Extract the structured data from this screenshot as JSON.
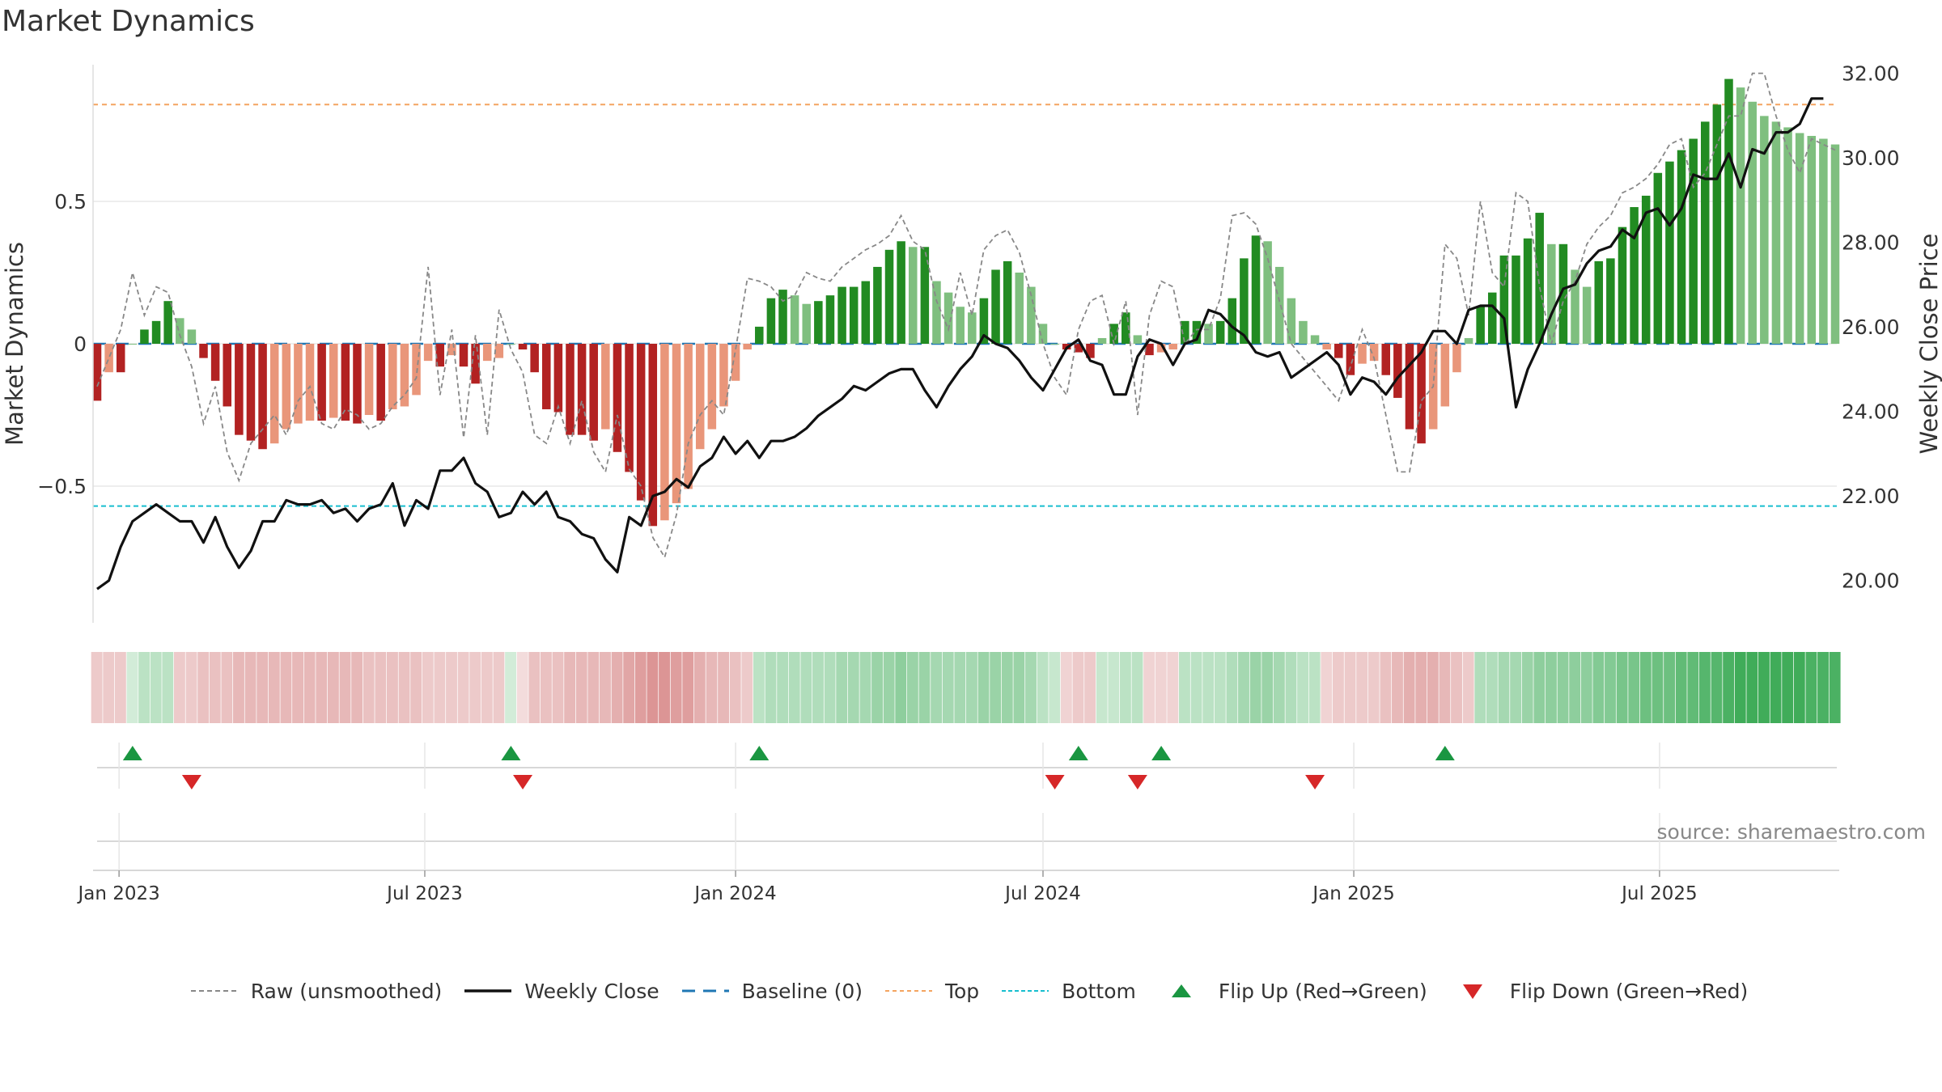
{
  "title": "Market Dynamics",
  "source": "source: sharemaestro.com",
  "colors": {
    "green_dark": "#228b22",
    "green_light": "#7fbf7f",
    "red_dark": "#b22222",
    "red_light": "#e9967a",
    "close_line": "#111111",
    "raw_line": "#888888",
    "baseline": "#1f77b4",
    "top": "#f4a460",
    "bottom": "#17becf",
    "flip_up": "#1a9641",
    "flip_down": "#d62728"
  },
  "chart_data": {
    "type": "bar",
    "title": "Market Dynamics",
    "ylabel": "Market Dynamics",
    "y2label": "Weekly Close Price",
    "ylim": [
      -0.98,
      0.98
    ],
    "y2lim": [
      19.0,
      32.2
    ],
    "yticks": [
      "0.5",
      "0",
      "−0.5"
    ],
    "yticks_values": [
      0.5,
      0,
      -0.5
    ],
    "y2ticks": [
      "32.00",
      "30.00",
      "28.00",
      "26.00",
      "24.00",
      "22.00",
      "20.00"
    ],
    "y2ticks_values": [
      32,
      30,
      28,
      26,
      24,
      22,
      20
    ],
    "xticks": [
      "Jan 2023",
      "Jul 2023",
      "Jan 2024",
      "Jul 2024",
      "Jan 2025",
      "Jul 2025"
    ],
    "xticks_values": [
      "2023-01-01",
      "2023-07-01",
      "2024-01-01",
      "2024-07-01",
      "2025-01-01",
      "2025-07-01"
    ],
    "first_week": "2022-12-19",
    "week_step_days": 7,
    "top_level": 0.84,
    "bottom_level": -0.57,
    "baseline": 0,
    "grid": true,
    "legend_position": "bottom",
    "bars": [
      -0.2,
      -0.1,
      -0.1,
      0.0,
      0.05,
      0.08,
      0.15,
      0.09,
      0.05,
      -0.05,
      -0.13,
      -0.22,
      -0.32,
      -0.34,
      -0.37,
      -0.35,
      -0.3,
      -0.28,
      -0.27,
      -0.27,
      -0.26,
      -0.27,
      -0.28,
      -0.25,
      -0.27,
      -0.23,
      -0.22,
      -0.18,
      -0.06,
      -0.08,
      -0.04,
      -0.08,
      -0.14,
      -0.06,
      -0.05,
      0.0,
      -0.02,
      -0.1,
      -0.23,
      -0.24,
      -0.32,
      -0.32,
      -0.34,
      -0.3,
      -0.38,
      -0.45,
      -0.55,
      -0.64,
      -0.62,
      -0.56,
      -0.51,
      -0.37,
      -0.3,
      -0.22,
      -0.13,
      -0.02,
      0.06,
      0.16,
      0.19,
      0.17,
      0.14,
      0.15,
      0.17,
      0.2,
      0.2,
      0.22,
      0.27,
      0.33,
      0.36,
      0.34,
      0.34,
      0.22,
      0.18,
      0.13,
      0.11,
      0.16,
      0.26,
      0.29,
      0.25,
      0.2,
      0.07,
      0.0,
      -0.02,
      -0.03,
      -0.05,
      0.02,
      0.07,
      0.11,
      0.03,
      -0.04,
      -0.03,
      -0.02,
      0.08,
      0.08,
      0.07,
      0.08,
      0.16,
      0.3,
      0.38,
      0.36,
      0.27,
      0.16,
      0.08,
      0.03,
      -0.02,
      -0.05,
      -0.11,
      -0.07,
      -0.06,
      -0.11,
      -0.19,
      -0.3,
      -0.35,
      -0.3,
      -0.22,
      -0.1,
      0.02,
      0.13,
      0.18,
      0.31,
      0.31,
      0.37,
      0.46,
      0.35,
      0.35,
      0.26,
      0.2,
      0.29,
      0.3,
      0.41,
      0.48,
      0.52,
      0.6,
      0.64,
      0.68,
      0.72,
      0.78,
      0.84,
      0.93,
      0.9,
      0.85,
      0.8,
      0.78,
      0.76,
      0.74,
      0.73,
      0.72,
      0.7
    ],
    "raw": [
      -0.15,
      -0.05,
      0.05,
      0.25,
      0.1,
      0.2,
      0.18,
      0.03,
      -0.08,
      -0.28,
      -0.15,
      -0.38,
      -0.48,
      -0.35,
      -0.3,
      -0.25,
      -0.32,
      -0.2,
      -0.15,
      -0.28,
      -0.3,
      -0.23,
      -0.25,
      -0.3,
      -0.28,
      -0.22,
      -0.18,
      -0.12,
      0.27,
      -0.18,
      0.05,
      -0.33,
      0.03,
      -0.32,
      0.12,
      -0.02,
      -0.1,
      -0.32,
      -0.35,
      -0.22,
      -0.35,
      -0.2,
      -0.38,
      -0.45,
      -0.25,
      -0.44,
      -0.5,
      -0.68,
      -0.75,
      -0.6,
      -0.35,
      -0.25,
      -0.2,
      -0.25,
      -0.02,
      0.23,
      0.22,
      0.2,
      0.15,
      0.17,
      0.25,
      0.23,
      0.22,
      0.27,
      0.3,
      0.33,
      0.35,
      0.38,
      0.45,
      0.36,
      0.33,
      0.15,
      0.05,
      0.25,
      0.1,
      0.33,
      0.38,
      0.4,
      0.32,
      0.17,
      0.0,
      -0.12,
      -0.18,
      0.05,
      0.15,
      0.17,
      0.0,
      0.15,
      -0.25,
      0.1,
      0.22,
      0.2,
      0.0,
      0.05,
      0.05,
      0.16,
      0.45,
      0.46,
      0.42,
      0.3,
      0.15,
      0.0,
      -0.05,
      -0.1,
      -0.15,
      -0.2,
      -0.08,
      0.05,
      -0.05,
      -0.25,
      -0.45,
      -0.45,
      -0.2,
      -0.15,
      0.35,
      0.3,
      0.1,
      0.5,
      0.25,
      0.2,
      0.53,
      0.5,
      0.2,
      0.0,
      0.15,
      0.22,
      0.35,
      0.41,
      0.45,
      0.53,
      0.55,
      0.58,
      0.63,
      0.7,
      0.72,
      0.55,
      0.6,
      0.7,
      0.8,
      0.8,
      0.95,
      0.95,
      0.8,
      0.68,
      0.6,
      0.72,
      0.7,
      0.68
    ],
    "close": [
      19.8,
      20.0,
      20.8,
      21.4,
      21.6,
      21.8,
      21.6,
      21.4,
      21.4,
      20.9,
      21.5,
      20.8,
      20.3,
      20.7,
      21.4,
      21.4,
      21.9,
      21.8,
      21.8,
      21.9,
      21.6,
      21.7,
      21.4,
      21.7,
      21.8,
      22.3,
      21.3,
      21.9,
      21.7,
      22.6,
      22.6,
      22.9,
      22.3,
      22.1,
      21.5,
      21.6,
      22.1,
      21.8,
      22.1,
      21.5,
      21.4,
      21.1,
      21.0,
      20.5,
      20.2,
      21.5,
      21.3,
      22.0,
      22.1,
      22.4,
      22.2,
      22.7,
      22.9,
      23.4,
      23.0,
      23.3,
      22.9,
      23.3,
      23.3,
      23.4,
      23.6,
      23.9,
      24.1,
      24.3,
      24.6,
      24.5,
      24.7,
      24.9,
      25.0,
      25.0,
      24.5,
      24.1,
      24.6,
      25.0,
      25.3,
      25.8,
      25.6,
      25.5,
      25.2,
      24.8,
      24.5,
      25.0,
      25.5,
      25.7,
      25.2,
      25.1,
      24.4,
      24.4,
      25.3,
      25.7,
      25.6,
      25.1,
      25.6,
      25.7,
      26.4,
      26.3,
      26.0,
      25.8,
      25.4,
      25.3,
      25.4,
      24.8,
      25.0,
      25.2,
      25.4,
      25.1,
      24.4,
      24.8,
      24.7,
      24.4,
      24.8,
      25.1,
      25.4,
      25.9,
      25.9,
      25.6,
      26.4,
      26.5,
      26.5,
      26.2,
      24.1,
      25.0,
      25.6,
      26.3,
      26.9,
      27.0,
      27.5,
      27.8,
      27.9,
      28.3,
      28.1,
      28.7,
      28.8,
      28.4,
      28.8,
      29.6,
      29.5,
      29.5,
      30.1,
      29.3,
      30.2,
      30.1,
      30.6,
      30.6,
      30.8,
      31.4,
      31.4
    ],
    "strip_intensity": [
      0.3,
      0.3,
      0.3,
      0.2,
      0.3,
      0.3,
      0.3,
      0.3,
      0.3,
      0.35,
      0.35,
      0.35,
      0.4,
      0.4,
      0.4,
      0.4,
      0.4,
      0.4,
      0.4,
      0.4,
      0.4,
      0.4,
      0.4,
      0.35,
      0.35,
      0.35,
      0.35,
      0.35,
      0.3,
      0.3,
      0.3,
      0.3,
      0.3,
      0.3,
      0.3,
      0.2,
      0.2,
      0.35,
      0.35,
      0.35,
      0.4,
      0.4,
      0.4,
      0.4,
      0.45,
      0.5,
      0.55,
      0.6,
      0.6,
      0.55,
      0.55,
      0.45,
      0.4,
      0.4,
      0.35,
      0.3,
      0.3,
      0.35,
      0.35,
      0.35,
      0.35,
      0.35,
      0.35,
      0.4,
      0.4,
      0.4,
      0.45,
      0.45,
      0.5,
      0.45,
      0.45,
      0.4,
      0.4,
      0.4,
      0.4,
      0.45,
      0.45,
      0.45,
      0.45,
      0.4,
      0.3,
      0.25,
      0.25,
      0.3,
      0.3,
      0.25,
      0.25,
      0.3,
      0.3,
      0.25,
      0.25,
      0.25,
      0.3,
      0.3,
      0.3,
      0.3,
      0.35,
      0.4,
      0.45,
      0.45,
      0.4,
      0.35,
      0.3,
      0.3,
      0.25,
      0.3,
      0.3,
      0.3,
      0.3,
      0.35,
      0.4,
      0.45,
      0.45,
      0.45,
      0.4,
      0.35,
      0.3,
      0.35,
      0.35,
      0.4,
      0.4,
      0.45,
      0.5,
      0.5,
      0.5,
      0.5,
      0.5,
      0.55,
      0.55,
      0.6,
      0.6,
      0.65,
      0.65,
      0.65,
      0.7,
      0.7,
      0.75,
      0.75,
      0.8,
      0.85,
      0.85,
      0.85,
      0.85,
      0.85,
      0.85,
      0.8,
      0.8,
      0.8
    ],
    "strip_sign": [
      -1,
      -1,
      -1,
      1,
      1,
      1,
      1,
      -1,
      -1,
      -1,
      -1,
      -1,
      -1,
      -1,
      -1,
      -1,
      -1,
      -1,
      -1,
      -1,
      -1,
      -1,
      -1,
      -1,
      -1,
      -1,
      -1,
      -1,
      -1,
      -1,
      -1,
      -1,
      -1,
      -1,
      -1,
      1,
      -1,
      -1,
      -1,
      -1,
      -1,
      -1,
      -1,
      -1,
      -1,
      -1,
      -1,
      -1,
      -1,
      -1,
      -1,
      -1,
      -1,
      -1,
      -1,
      -1,
      1,
      1,
      1,
      1,
      1,
      1,
      1,
      1,
      1,
      1,
      1,
      1,
      1,
      1,
      1,
      1,
      1,
      1,
      1,
      1,
      1,
      1,
      1,
      1,
      1,
      1,
      -1,
      -1,
      -1,
      1,
      1,
      1,
      1,
      -1,
      -1,
      -1,
      1,
      1,
      1,
      1,
      1,
      1,
      1,
      1,
      1,
      1,
      1,
      1,
      -1,
      -1,
      -1,
      -1,
      -1,
      -1,
      -1,
      -1,
      -1,
      -1,
      -1,
      -1,
      -1,
      1,
      1,
      1,
      1,
      1,
      1,
      1,
      1,
      1,
      1,
      1,
      1,
      1,
      1,
      1,
      1,
      1,
      1,
      1,
      1,
      1,
      1,
      1,
      1,
      1,
      1,
      1,
      1,
      1,
      1,
      1,
      1,
      1,
      1,
      1,
      1,
      1
    ],
    "flip_up_weeks": [
      3,
      35,
      56,
      83,
      90,
      114
    ],
    "flip_down_weeks": [
      8,
      36,
      81,
      88,
      103
    ],
    "legend": [
      {
        "key": "raw",
        "label": "Raw (unsmoothed)"
      },
      {
        "key": "close",
        "label": "Weekly Close"
      },
      {
        "key": "baseline",
        "label": "Baseline (0)"
      },
      {
        "key": "top",
        "label": "Top"
      },
      {
        "key": "bottom",
        "label": "Bottom"
      },
      {
        "key": "flip_up",
        "label": "Flip Up (Red→Green)"
      },
      {
        "key": "flip_down",
        "label": "Flip Down (Green→Red)"
      }
    ]
  }
}
